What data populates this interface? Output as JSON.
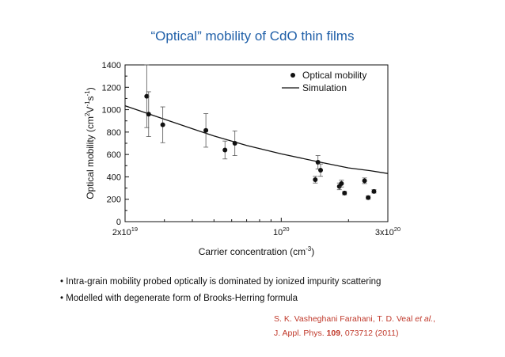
{
  "slide": {
    "title": "“Optical” mobility of CdO thin films",
    "bullets": [
      "Intra-grain mobility probed optically is dominated by ionized impurity scattering",
      "Modelled with degenerate form of Brooks-Herring formula"
    ],
    "bullet_marker": "•",
    "reference": {
      "authors": "S. K. Vasheghani Farahani, T. D. Veal",
      "etal": "et al.",
      "journal": "J. Appl. Phys.",
      "volume": "109",
      "pages": ", 073712 (2011)"
    }
  },
  "chart_data": {
    "type": "scatter",
    "xscale": "log",
    "xlim": [
      2e+19,
      3e+20
    ],
    "ylim": [
      0,
      1400
    ],
    "xlabel_base": "Carrier concentration (cm",
    "xlabel_exp": "-3",
    "ylabel_base": "Optical mobility (cm",
    "ylabel_exp1": "2",
    "ylabel_mid": "V",
    "ylabel_exp2": "-1",
    "ylabel_mid2": "s",
    "ylabel_exp3": "-1",
    "ylabel_end": ")",
    "ylabel_close": ")",
    "xticks": [
      {
        "value": 2e+19,
        "base": "2x10",
        "exp": "19"
      },
      {
        "value": 1e+20,
        "base": "10",
        "exp": "20"
      },
      {
        "value": 3e+20,
        "base": "3x10",
        "exp": "20"
      }
    ],
    "yticks": [
      0,
      200,
      400,
      600,
      800,
      1000,
      1200,
      1400
    ],
    "legend": {
      "position": "top-right",
      "points_label": "Optical mobility",
      "line_label": "Simulation"
    },
    "series": [
      {
        "name": "Optical mobility",
        "x": [
          2.5e+19,
          2.55e+19,
          2.95e+19,
          4.6e+19,
          5.6e+19,
          6.2e+19,
          1.42e+20,
          1.46e+20,
          1.5e+20,
          1.82e+20,
          1.86e+20,
          1.92e+20,
          2.36e+20,
          2.45e+20,
          2.6e+20
        ],
        "y": [
          1120,
          960,
          865,
          815,
          640,
          700,
          375,
          530,
          460,
          315,
          340,
          255,
          365,
          215,
          270
        ],
        "err": [
          280,
          200,
          160,
          150,
          80,
          110,
          30,
          60,
          55,
          30,
          30,
          15,
          25,
          15,
          15
        ]
      },
      {
        "name": "Simulation",
        "x": [
          2e+19,
          3e+19,
          4e+19,
          5e+19,
          7e+19,
          1e+20,
          1.5e+20,
          2e+20,
          2.5e+20,
          3e+20
        ],
        "y": [
          1035,
          915,
          830,
          765,
          680,
          605,
          530,
          480,
          455,
          430
        ]
      }
    ]
  }
}
